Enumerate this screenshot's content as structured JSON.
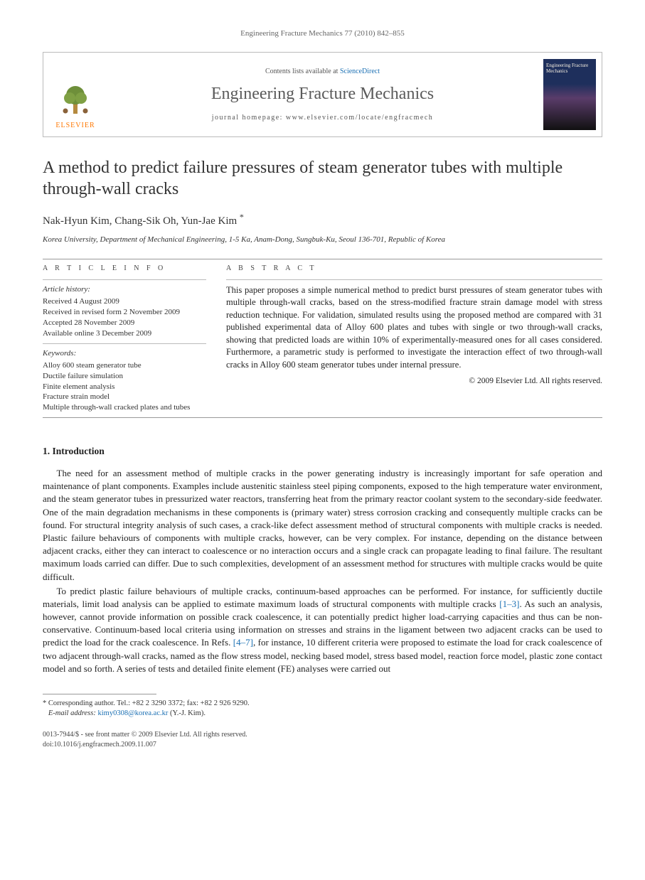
{
  "running_head": "Engineering Fracture Mechanics 77 (2010) 842–855",
  "header": {
    "contents_prefix": "Contents lists available at ",
    "contents_link": "ScienceDirect",
    "journal_title": "Engineering Fracture Mechanics",
    "homepage_label": "journal homepage: ",
    "homepage_url": "www.elsevier.com/locate/engfracmech",
    "publisher_name": "ELSEVIER",
    "cover_title": "Engineering Fracture Mechanics"
  },
  "article": {
    "title": "A method to predict failure pressures of steam generator tubes with multiple through-wall cracks",
    "authors": "Nak-Hyun Kim, Chang-Sik Oh, Yun-Jae Kim",
    "corr_marker": "*",
    "affiliation": "Korea University, Department of Mechanical Engineering, 1-5 Ka, Anam-Dong, Sungbuk-Ku, Seoul 136-701, Republic of Korea"
  },
  "info": {
    "head": "A R T I C L E   I N F O",
    "history_head": "Article history:",
    "history": [
      "Received 4 August 2009",
      "Received in revised form 2 November 2009",
      "Accepted 28 November 2009",
      "Available online 3 December 2009"
    ],
    "keywords_head": "Keywords:",
    "keywords": [
      "Alloy 600 steam generator tube",
      "Ductile failure simulation",
      "Finite element analysis",
      "Fracture strain model",
      "Multiple through-wall cracked plates and tubes"
    ]
  },
  "abstract": {
    "head": "A B S T R A C T",
    "text": "This paper proposes a simple numerical method to predict burst pressures of steam generator tubes with multiple through-wall cracks, based on the stress-modified fracture strain damage model with stress reduction technique. For validation, simulated results using the proposed method are compared with 31 published experimental data of Alloy 600 plates and tubes with single or two through-wall cracks, showing that predicted loads are within 10% of experimentally-measured ones for all cases considered. Furthermore, a parametric study is performed to investigate the interaction effect of two through-wall cracks in Alloy 600 steam generator tubes under internal pressure.",
    "copyright": "© 2009 Elsevier Ltd. All rights reserved."
  },
  "sections": {
    "intro_head": "1. Introduction",
    "intro_paras": [
      "The need for an assessment method of multiple cracks in the power generating industry is increasingly important for safe operation and maintenance of plant components. Examples include austenitic stainless steel piping components, exposed to the high temperature water environment, and the steam generator tubes in pressurized water reactors, transferring heat from the primary reactor coolant system to the secondary-side feedwater. One of the main degradation mechanisms in these components is (primary water) stress corrosion cracking and consequently multiple cracks can be found. For structural integrity analysis of such cases, a crack-like defect assessment method of structural components with multiple cracks is needed. Plastic failure behaviours of components with multiple cracks, however, can be very complex. For instance, depending on the distance between adjacent cracks, either they can interact to coalescence or no interaction occurs and a single crack can propagate leading to final failure. The resultant maximum loads carried can differ. Due to such complexities, development of an assessment method for structures with multiple cracks would be quite difficult.",
      "To predict plastic failure behaviours of multiple cracks, continuum-based approaches can be performed. For instance, for sufficiently ductile materials, limit load analysis can be applied to estimate maximum loads of structural components with multiple cracks [1–3]. As such an analysis, however, cannot provide information on possible crack coalescence, it can potentially predict higher load-carrying capacities and thus can be non-conservative. Continuum-based local criteria using information on stresses and strains in the ligament between two adjacent cracks can be used to predict the load for the crack coalescence. In Refs. [4–7], for instance, 10 different criteria were proposed to estimate the load for crack coalescence of two adjacent through-wall cracks, named as the flow stress model, necking based model, stress based model, reaction force model, plastic zone contact model and so forth. A series of tests and detailed finite element (FE) analyses were carried out"
    ],
    "ref_1": "[1–3]",
    "ref_2": "[4–7]"
  },
  "footnote": {
    "corr_label": "* Corresponding author. Tel.: +82 2 3290 3372; fax: +82 2 926 9290.",
    "email_label": "E-mail address:",
    "email": "kimy0308@korea.ac.kr",
    "email_who": "(Y.-J. Kim)."
  },
  "footer": {
    "line1": "0013-7944/$ - see front matter © 2009 Elsevier Ltd. All rights reserved.",
    "line2": "doi:10.1016/j.engfracmech.2009.11.007"
  },
  "colors": {
    "link": "#1a6fb3",
    "publisher_orange": "#ff7700",
    "text": "#222222",
    "cover_top": "#1e2f5c",
    "cover_bottom": "#111111"
  }
}
